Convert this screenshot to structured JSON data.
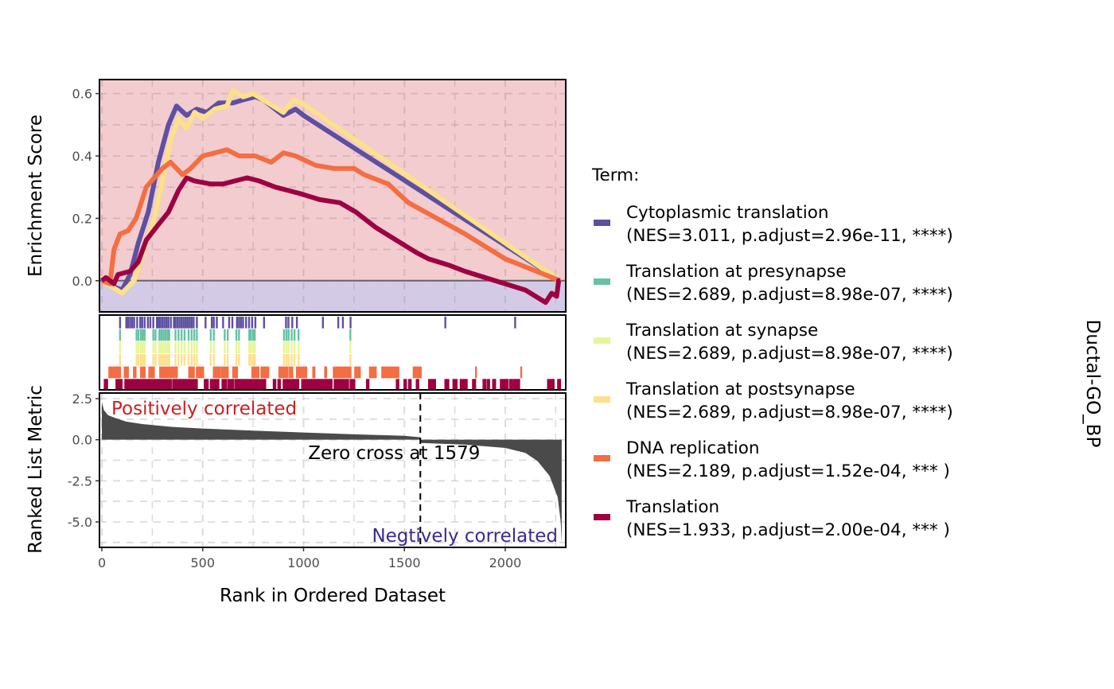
{
  "chart_data": {
    "type": "line",
    "title": "",
    "strip_label": "Ductal-GO_BP",
    "n_ranks": 2280,
    "xlim": [
      -12,
      2300
    ],
    "x_ticks": [
      0,
      500,
      1000,
      1500,
      2000
    ],
    "xlabel": "Rank in Ordered Dataset",
    "es_panel": {
      "ylabel": "Enrichment Score",
      "ylim": [
        -0.1,
        0.645
      ],
      "y_ticks": [
        0.0,
        0.2,
        0.4,
        0.6
      ],
      "y_tick_labels": [
        "0.0",
        "0.2",
        "0.4",
        "0.6"
      ],
      "pos_bg": "#F2CCCF",
      "neg_bg": "#D3CAE6"
    },
    "metric_panel": {
      "ylabel": "Ranked List Metric",
      "ylim": [
        -6.55,
        2.84
      ],
      "y_ticks": [
        2.5,
        0.0,
        -2.5,
        -5.0
      ],
      "y_tick_labels": [
        "2.5",
        "0.0",
        "-2.5",
        "-5.0"
      ],
      "pos_label": "Positively correlated",
      "neg_label": "Negtively correlated",
      "pos_color": "#CC1F1F",
      "neg_color": "#3A2A8C",
      "zero_cross": 1579,
      "zero_cross_label": "Zero cross at 1579",
      "curve": [
        [
          0,
          2.3
        ],
        [
          10,
          1.8
        ],
        [
          30,
          1.5
        ],
        [
          60,
          1.35
        ],
        [
          120,
          1.1
        ],
        [
          200,
          0.95
        ],
        [
          350,
          0.78
        ],
        [
          500,
          0.68
        ],
        [
          750,
          0.55
        ],
        [
          1000,
          0.44
        ],
        [
          1250,
          0.33
        ],
        [
          1500,
          0.24
        ],
        [
          1578,
          0.15
        ],
        [
          1580,
          -0.2
        ],
        [
          1800,
          -0.3
        ],
        [
          2000,
          -0.5
        ],
        [
          2100,
          -0.8
        ],
        [
          2160,
          -1.3
        ],
        [
          2220,
          -2.2
        ],
        [
          2260,
          -3.5
        ],
        [
          2275,
          -5.0
        ],
        [
          2280,
          -6.3
        ]
      ]
    },
    "legend_title": "Term:",
    "series": [
      {
        "name": "Cytoplasmic translation",
        "stats": "(NES=3.011, p.adjust=2.96e-11, ****)",
        "color": "#5E4FA2",
        "es": [
          [
            0,
            0
          ],
          [
            60,
            -0.02
          ],
          [
            100,
            -0.03
          ],
          [
            140,
            0.02
          ],
          [
            180,
            0.12
          ],
          [
            230,
            0.22
          ],
          [
            280,
            0.38
          ],
          [
            330,
            0.5
          ],
          [
            370,
            0.56
          ],
          [
            420,
            0.53
          ],
          [
            470,
            0.55
          ],
          [
            520,
            0.54
          ],
          [
            580,
            0.57
          ],
          [
            650,
            0.57
          ],
          [
            700,
            0.58
          ],
          [
            760,
            0.59
          ],
          [
            800,
            0.58
          ],
          [
            900,
            0.53
          ],
          [
            960,
            0.55
          ],
          [
            1000,
            0.53
          ],
          [
            2272,
            0
          ]
        ],
        "hits": [
          90,
          121,
          130,
          140,
          150,
          160,
          175,
          190,
          200,
          212,
          228,
          240,
          255,
          273,
          281,
          290,
          300,
          310,
          320,
          330,
          342,
          357,
          365,
          375,
          385,
          395,
          405,
          415,
          425,
          435,
          445,
          455,
          471,
          514,
          545,
          555,
          570,
          601,
          631,
          647,
          670,
          680,
          690,
          700,
          715,
          730,
          745,
          761,
          804,
          913,
          925,
          944,
          967,
          1096,
          1172,
          1195,
          1233,
          1703,
          2049
        ]
      },
      {
        "name": "Translation at presynapse",
        "stats": "(NES=2.689, p.adjust=8.98e-07, ****)",
        "color": "#66C2A5",
        "es": [
          [
            0,
            0
          ],
          [
            50,
            -0.02
          ],
          [
            100,
            -0.04
          ],
          [
            160,
            0.0
          ],
          [
            200,
            0.08
          ],
          [
            260,
            0.2
          ],
          [
            300,
            0.32
          ],
          [
            340,
            0.45
          ],
          [
            380,
            0.52
          ],
          [
            420,
            0.49
          ],
          [
            460,
            0.54
          ],
          [
            500,
            0.52
          ],
          [
            560,
            0.55
          ],
          [
            620,
            0.56
          ],
          [
            650,
            0.61
          ],
          [
            700,
            0.59
          ],
          [
            750,
            0.6
          ],
          [
            800,
            0.58
          ],
          [
            900,
            0.54
          ],
          [
            950,
            0.58
          ],
          [
            990,
            0.57
          ],
          [
            2272,
            0
          ]
        ],
        "hits": [
          90,
          172,
          182,
          194,
          203,
          212,
          255,
          266,
          285,
          295,
          305,
          315,
          325,
          334,
          365,
          380,
          395,
          410,
          430,
          445,
          458,
          471,
          540,
          555,
          609,
          624,
          667,
          680,
          731,
          739,
          750,
          758,
          903,
          915,
          926,
          941,
          955,
          975,
          1232
        ]
      },
      {
        "name": "Translation at synapse",
        "stats": "(NES=2.689, p.adjust=8.98e-07, ****)",
        "color": "#E6F598",
        "es": [
          [
            0,
            0
          ],
          [
            50,
            -0.02
          ],
          [
            100,
            -0.04
          ],
          [
            160,
            0.0
          ],
          [
            200,
            0.08
          ],
          [
            260,
            0.2
          ],
          [
            300,
            0.32
          ],
          [
            340,
            0.45
          ],
          [
            380,
            0.52
          ],
          [
            420,
            0.49
          ],
          [
            460,
            0.54
          ],
          [
            500,
            0.52
          ],
          [
            560,
            0.55
          ],
          [
            620,
            0.56
          ],
          [
            650,
            0.61
          ],
          [
            700,
            0.59
          ],
          [
            750,
            0.6
          ],
          [
            800,
            0.58
          ],
          [
            900,
            0.54
          ],
          [
            950,
            0.58
          ],
          [
            990,
            0.57
          ],
          [
            2272,
            0
          ]
        ],
        "hits": [
          90,
          172,
          182,
          194,
          203,
          212,
          255,
          266,
          285,
          295,
          305,
          315,
          325,
          334,
          365,
          380,
          395,
          410,
          430,
          445,
          458,
          471,
          540,
          555,
          609,
          624,
          667,
          680,
          731,
          739,
          750,
          758,
          903,
          915,
          926,
          941,
          955,
          975,
          1232
        ]
      },
      {
        "name": "Translation at postsynapse",
        "stats": "(NES=2.689, p.adjust=8.98e-07, ****)",
        "color": "#FEE08B",
        "es": [
          [
            0,
            0
          ],
          [
            50,
            -0.02
          ],
          [
            100,
            -0.04
          ],
          [
            160,
            0.0
          ],
          [
            200,
            0.08
          ],
          [
            260,
            0.2
          ],
          [
            300,
            0.32
          ],
          [
            340,
            0.45
          ],
          [
            380,
            0.52
          ],
          [
            420,
            0.49
          ],
          [
            460,
            0.54
          ],
          [
            500,
            0.52
          ],
          [
            560,
            0.55
          ],
          [
            620,
            0.56
          ],
          [
            650,
            0.61
          ],
          [
            700,
            0.59
          ],
          [
            750,
            0.6
          ],
          [
            800,
            0.58
          ],
          [
            900,
            0.54
          ],
          [
            950,
            0.58
          ],
          [
            990,
            0.57
          ],
          [
            2272,
            0
          ]
        ],
        "hits": [
          90,
          172,
          182,
          194,
          203,
          212,
          255,
          266,
          285,
          295,
          305,
          315,
          325,
          334,
          365,
          380,
          395,
          410,
          430,
          445,
          458,
          471,
          540,
          555,
          609,
          624,
          667,
          680,
          731,
          739,
          750,
          758,
          903,
          915,
          926,
          941,
          955,
          975,
          1232
        ]
      },
      {
        "name": "DNA replication",
        "stats": "(NES=2.189, p.adjust=1.52e-04, *** )",
        "color": "#F46D43",
        "es": [
          [
            0,
            0
          ],
          [
            40,
            -0.01
          ],
          [
            60,
            0.1
          ],
          [
            90,
            0.15
          ],
          [
            130,
            0.16
          ],
          [
            170,
            0.2
          ],
          [
            220,
            0.3
          ],
          [
            260,
            0.33
          ],
          [
            300,
            0.36
          ],
          [
            340,
            0.38
          ],
          [
            400,
            0.34
          ],
          [
            440,
            0.36
          ],
          [
            500,
            0.4
          ],
          [
            560,
            0.41
          ],
          [
            620,
            0.42
          ],
          [
            680,
            0.4
          ],
          [
            760,
            0.4
          ],
          [
            840,
            0.38
          ],
          [
            900,
            0.41
          ],
          [
            960,
            0.4
          ],
          [
            1060,
            0.37
          ],
          [
            1150,
            0.36
          ],
          [
            1250,
            0.36
          ],
          [
            1300,
            0.34
          ],
          [
            1420,
            0.31
          ],
          [
            1520,
            0.25
          ],
          [
            1800,
            0.15
          ],
          [
            2000,
            0.07
          ],
          [
            2272,
            0
          ]
        ],
        "hit_ranges": [
          [
            37,
            90
          ],
          [
            113,
            129
          ],
          [
            159,
            167
          ],
          [
            194,
            212
          ],
          [
            235,
            258
          ],
          [
            289,
            372
          ],
          [
            433,
            456
          ],
          [
            471,
            502
          ],
          [
            555,
            586
          ],
          [
            596,
            624
          ],
          [
            651,
            670
          ],
          [
            746,
            761
          ],
          [
            769,
            776
          ],
          [
            791,
            825
          ],
          [
            880,
            921
          ],
          [
            932,
            944
          ],
          [
            967,
            1013
          ],
          [
            1048,
            1054
          ],
          [
            1107,
            1112
          ],
          [
            1150,
            1233
          ],
          [
            1256,
            1279
          ],
          [
            1329,
            1358
          ],
          [
            1390,
            1470
          ],
          [
            1546,
            1581
          ],
          [
            1855,
            1855
          ],
          [
            2079,
            2079
          ]
        ]
      },
      {
        "name": "Translation",
        "stats": "(NES=1.933, p.adjust=2.00e-04, *** )",
        "color": "#9E0142",
        "es": [
          [
            0,
            0
          ],
          [
            20,
            0.01
          ],
          [
            60,
            -0.01
          ],
          [
            80,
            0.02
          ],
          [
            140,
            0.03
          ],
          [
            180,
            0.06
          ],
          [
            220,
            0.13
          ],
          [
            280,
            0.18
          ],
          [
            330,
            0.22
          ],
          [
            380,
            0.29
          ],
          [
            420,
            0.33
          ],
          [
            460,
            0.32
          ],
          [
            540,
            0.31
          ],
          [
            600,
            0.31
          ],
          [
            660,
            0.32
          ],
          [
            720,
            0.33
          ],
          [
            780,
            0.32
          ],
          [
            860,
            0.3
          ],
          [
            920,
            0.29
          ],
          [
            980,
            0.28
          ],
          [
            1080,
            0.26
          ],
          [
            1180,
            0.25
          ],
          [
            1260,
            0.22
          ],
          [
            1360,
            0.17
          ],
          [
            1460,
            0.13
          ],
          [
            1560,
            0.09
          ],
          [
            1620,
            0.07
          ],
          [
            1720,
            0.05
          ],
          [
            1800,
            0.03
          ],
          [
            1900,
            0.01
          ],
          [
            2000,
            -0.01
          ],
          [
            2100,
            -0.03
          ],
          [
            2200,
            -0.07
          ],
          [
            2230,
            -0.04
          ],
          [
            2255,
            -0.05
          ],
          [
            2265,
            0.0
          ],
          [
            2272,
            0.0
          ]
        ],
        "hit_ranges": [
          [
            14,
            26
          ],
          [
            72,
            98
          ],
          [
            116,
            273
          ],
          [
            281,
            342
          ],
          [
            353,
            471
          ],
          [
            510,
            525
          ],
          [
            540,
            578
          ],
          [
            598,
            616
          ],
          [
            627,
            651
          ],
          [
            662,
            810
          ],
          [
            852,
            860
          ],
          [
            875,
            883
          ],
          [
            901,
            974
          ],
          [
            993,
            1139
          ],
          [
            1154,
            1221
          ],
          [
            1233,
            1252
          ],
          [
            1314,
            1322
          ],
          [
            1462,
            1470
          ],
          [
            1500,
            1508
          ],
          [
            1523,
            1531
          ],
          [
            1561,
            1569
          ],
          [
            1622,
            1652
          ],
          [
            1703,
            1718
          ],
          [
            1743,
            1759
          ],
          [
            1779,
            1809
          ],
          [
            1840,
            1851
          ],
          [
            1892,
            1901
          ],
          [
            1912,
            1920
          ],
          [
            1940,
            1950
          ],
          [
            1978,
            2012
          ],
          [
            2024,
            2032
          ],
          [
            2041,
            2069
          ],
          [
            2212,
            2240
          ],
          [
            2262,
            2272
          ]
        ]
      }
    ]
  }
}
